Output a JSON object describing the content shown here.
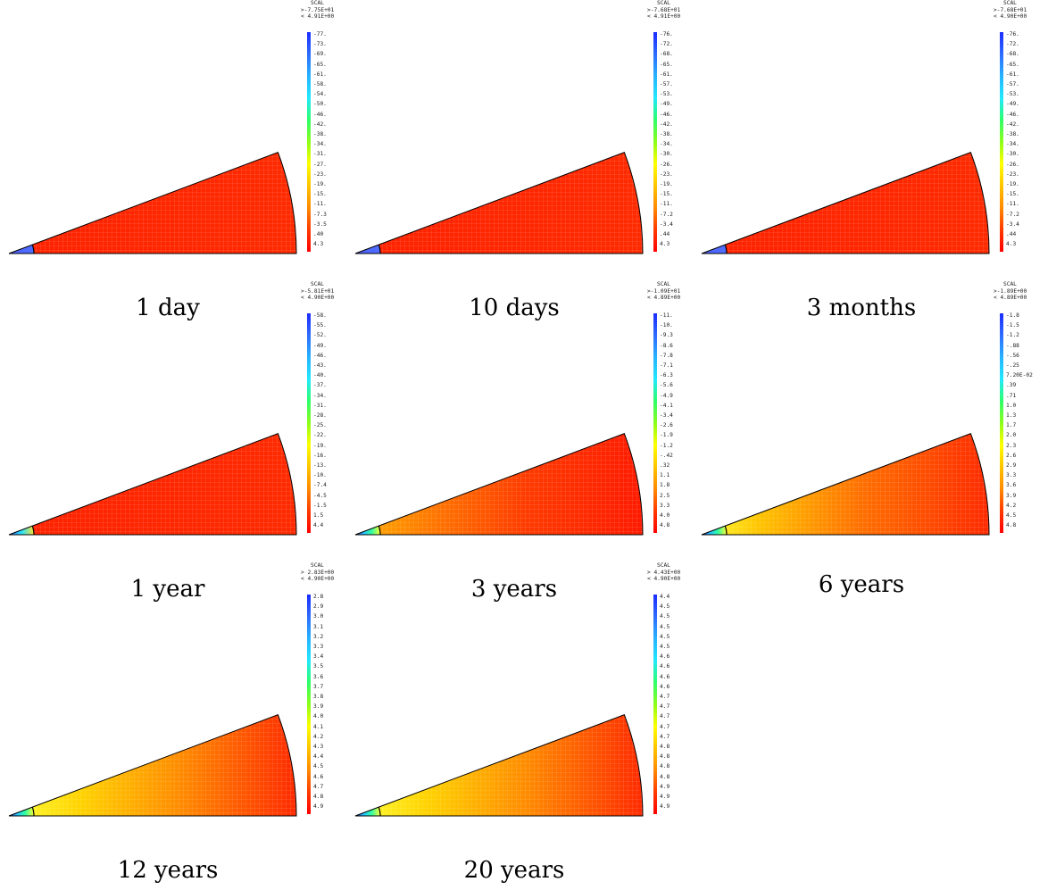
{
  "panels": [
    {
      "caption": "1 day",
      "header": [
        "SCAL",
        ">-7.75E+01",
        "< 4.91E+00"
      ],
      "ticks": [
        "-77.",
        "-73.",
        "-69.",
        "-65.",
        "-61.",
        "-58.",
        "-54.",
        "-50.",
        "-46.",
        "-42.",
        "-38.",
        "-34.",
        "-31.",
        "-27.",
        "-23.",
        "-19.",
        "-15.",
        "-11.",
        "-7.3",
        "-3.5",
        ".40",
        "4.3"
      ]
    },
    {
      "caption": "10 days",
      "header": [
        "SCAL",
        ">-7.68E+01",
        "< 4.91E+00"
      ],
      "ticks": [
        "-76.",
        "-72.",
        "-68.",
        "-65.",
        "-61.",
        "-57.",
        "-53.",
        "-49.",
        "-46.",
        "-42.",
        "-38.",
        "-34.",
        "-30.",
        "-26.",
        "-23.",
        "-19.",
        "-15.",
        "-11.",
        "-7.2",
        "-3.4",
        ".44",
        "4.3"
      ]
    },
    {
      "caption": "3 months",
      "header": [
        "SCAL",
        ">-7.68E+01",
        "< 4.90E+00"
      ],
      "ticks": [
        "-76.",
        "-72.",
        "-68.",
        "-65.",
        "-61.",
        "-57.",
        "-53.",
        "-49.",
        "-46.",
        "-42.",
        "-38.",
        "-34.",
        "-30.",
        "-26.",
        "-23.",
        "-19.",
        "-15.",
        "-11.",
        "-7.2",
        "-3.4",
        ".44",
        "4.3"
      ]
    },
    {
      "caption": "1 year",
      "header": [
        "SCAL",
        ">-5.81E+01",
        "< 4.90E+00"
      ],
      "ticks": [
        "-58.",
        "-55.",
        "-52.",
        "-49.",
        "-46.",
        "-43.",
        "-40.",
        "-37.",
        "-34.",
        "-31.",
        "-28.",
        "-25.",
        "-22.",
        "-19.",
        "-16.",
        "-13.",
        "-10.",
        "-7.4",
        "-4.5",
        "-1.5",
        "1.5",
        "4.4"
      ]
    },
    {
      "caption": "3 years",
      "header": [
        "SCAL",
        ">-1.09E+01",
        "< 4.89E+00"
      ],
      "ticks": [
        "-11.",
        "-10.",
        "-9.3",
        "-8.6",
        "-7.8",
        "-7.1",
        "-6.3",
        "-5.6",
        "-4.9",
        "-4.1",
        "-3.4",
        "-2.6",
        "-1.9",
        "-1.2",
        "-.42",
        ".32",
        "1.1",
        "1.8",
        "2.5",
        "3.3",
        "4.0",
        "4.8"
      ]
    },
    {
      "caption": "6 years",
      "header": [
        "SCAL",
        ">-1.89E+00",
        "< 4.89E+00"
      ],
      "ticks": [
        "-1.8",
        "-1.5",
        "-1.2",
        "-.88",
        "-.56",
        "-.25",
        "7.20E-02",
        ".39",
        ".71",
        "1.0",
        "1.3",
        "1.7",
        "2.0",
        "2.3",
        "2.6",
        "2.9",
        "3.3",
        "3.6",
        "3.9",
        "4.2",
        "4.5",
        "4.8"
      ]
    },
    {
      "caption": "12 years",
      "header": [
        "SCAL",
        "> 2.83E+00",
        "< 4.90E+00"
      ],
      "ticks": [
        "2.8",
        "2.9",
        "3.0",
        "3.1",
        "3.2",
        "3.3",
        "3.4",
        "3.5",
        "3.6",
        "3.7",
        "3.8",
        "3.9",
        "4.0",
        "4.1",
        "4.2",
        "4.3",
        "4.4",
        "4.5",
        "4.6",
        "4.7",
        "4.8",
        "4.9"
      ]
    },
    {
      "caption": "20 years",
      "header": [
        "SCAL",
        "> 4.43E+00",
        "< 4.90E+00"
      ],
      "ticks": [
        "4.4",
        "4.5",
        "4.5",
        "4.5",
        "4.5",
        "4.5",
        "4.6",
        "4.6",
        "4.6",
        "4.6",
        "4.7",
        "4.7",
        "4.7",
        "4.7",
        "4.7",
        "4.8",
        "4.8",
        "4.8",
        "4.8",
        "4.9",
        "4.9",
        "4.9"
      ]
    }
  ],
  "colors": {
    "scale": [
      "#1a2cff",
      "#2f6bff",
      "#27b3ff",
      "#22e8ff",
      "#2eff6a",
      "#8cff1a",
      "#ffff00",
      "#ffc400",
      "#ff8a00",
      "#ff3a00",
      "#ff0000"
    ],
    "inner_wedge": [
      "#4f5fff",
      "#4f8cff",
      "#4fb0ff",
      "#22e4ff",
      "#22e4ff",
      "#ffff33"
    ],
    "field": [
      "#ff2200",
      "#ff2a00",
      "#ff3300",
      "#ff8a00",
      "#ffb000",
      "#ffd000"
    ],
    "outline": "#000000"
  }
}
